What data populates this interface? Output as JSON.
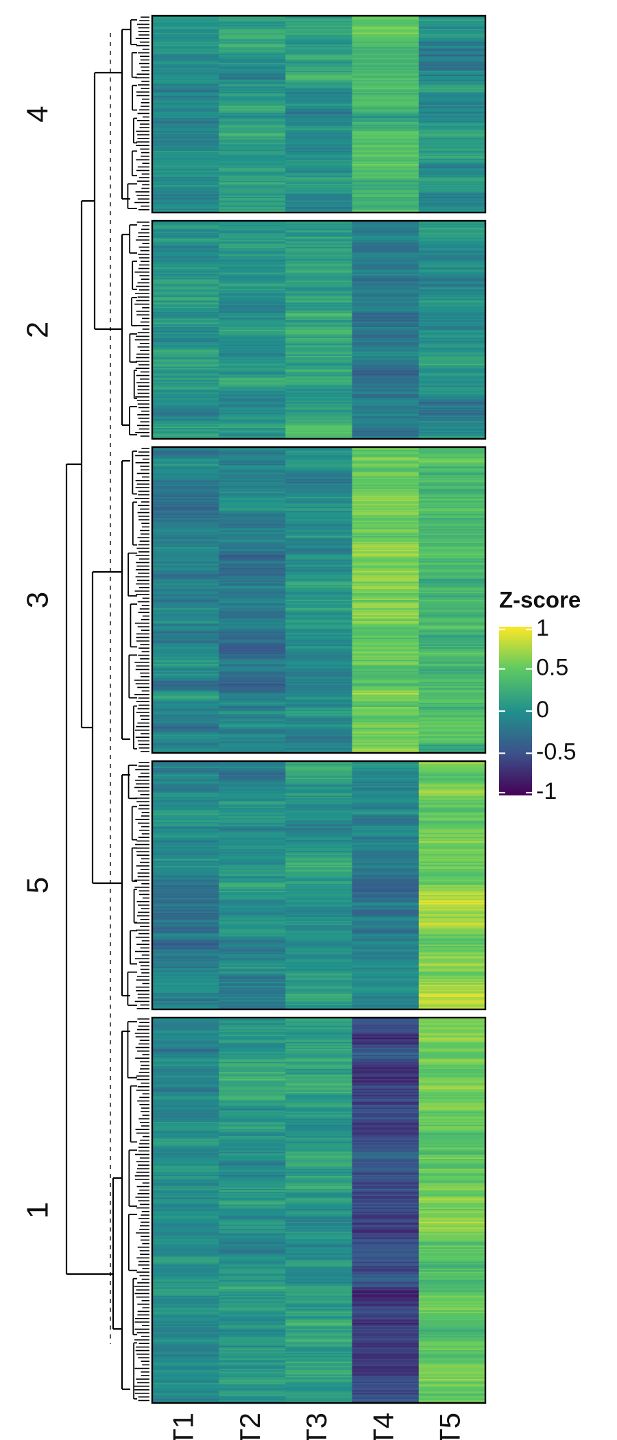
{
  "chart_data": {
    "type": "heatmap",
    "title": "",
    "xlabel": "",
    "ylabel": "",
    "columns": [
      "T1",
      "T2",
      "T3",
      "T4",
      "T5"
    ],
    "clusters": [
      {
        "label": "4",
        "rows": 150,
        "mean_zscore": [
          -0.05,
          0.08,
          0.05,
          0.35,
          -0.05
        ]
      },
      {
        "label": "2",
        "rows": 160,
        "mean_zscore": [
          0.05,
          0.05,
          0.12,
          -0.25,
          0.0
        ]
      },
      {
        "label": "3",
        "rows": 220,
        "mean_zscore": [
          -0.1,
          -0.15,
          -0.02,
          0.55,
          0.35
        ]
      },
      {
        "label": "5",
        "rows": 180,
        "mean_zscore": [
          -0.1,
          -0.05,
          0.05,
          -0.1,
          0.6
        ]
      },
      {
        "label": "1",
        "rows": 270,
        "mean_zscore": [
          -0.05,
          0.05,
          0.12,
          -0.55,
          0.5
        ]
      }
    ],
    "legend": {
      "title": "Z-score",
      "ticks": [
        1,
        0.5,
        0,
        -0.5,
        -1
      ],
      "tick_labels": [
        "1",
        "0.5",
        "0",
        "-0.5",
        "-1"
      ],
      "palette": "viridis",
      "range": [
        -1,
        1
      ],
      "placement": "right"
    },
    "dendrogram": {
      "side": "left",
      "cut_line": "dashed"
    }
  },
  "colors": {
    "background": "#ffffff",
    "border": "#000000",
    "viridis": [
      "#440154",
      "#3b528b",
      "#21918c",
      "#5ec962",
      "#fde725"
    ]
  }
}
